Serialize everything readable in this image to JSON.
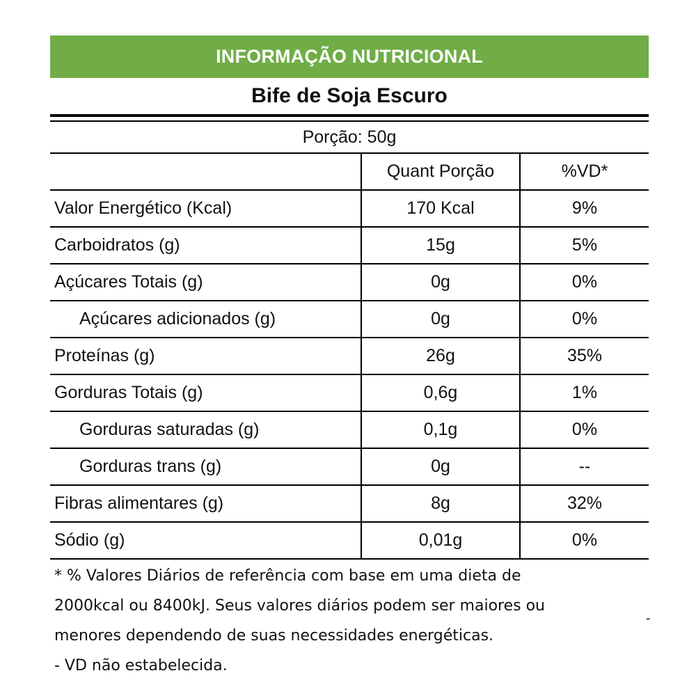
{
  "header": {
    "title": "INFORMAÇÃO NUTRICIONAL",
    "product": "Bife de Soja Escuro",
    "portion": "Porção: 50g"
  },
  "colors": {
    "banner": "#70ad47",
    "banner_text": "#ffffff"
  },
  "table": {
    "columns": [
      "",
      "Quant Porção",
      "%VD*"
    ],
    "rows": [
      {
        "name": "Valor Energético (Kcal)",
        "qty": "170 Kcal",
        "vd": "9%",
        "indent": false
      },
      {
        "name": "Carboidratos (g)",
        "qty": "15g",
        "vd": "5%",
        "indent": false
      },
      {
        "name": "Açúcares Totais (g)",
        "qty": "0g",
        "vd": "0%",
        "indent": false
      },
      {
        "name": "Açúcares adicionados (g)",
        "qty": "0g",
        "vd": "0%",
        "indent": true
      },
      {
        "name": "Proteínas (g)",
        "qty": "26g",
        "vd": "35%",
        "indent": false
      },
      {
        "name": "Gorduras Totais (g)",
        "qty": "0,6g",
        "vd": "1%",
        "indent": false
      },
      {
        "name": "Gorduras saturadas (g)",
        "qty": "0,1g",
        "vd": "0%",
        "indent": true
      },
      {
        "name": "Gorduras trans (g)",
        "qty": "0g",
        "vd": "--",
        "indent": true
      },
      {
        "name": "Fibras alimentares (g)",
        "qty": "8g",
        "vd": "32%",
        "indent": false
      },
      {
        "name": "Sódio (g)",
        "qty": "0,01g",
        "vd": "0%",
        "indent": false
      }
    ]
  },
  "footnote": {
    "lines": [
      "* % Valores Diários de referência com base em uma dieta de",
      "2000kcal ou 8400kJ. Seus valores diários podem ser maiores ou",
      "menores dependendo de suas necessidades energéticas.",
      "- VD não estabelecida."
    ],
    "stray_mark": "-"
  }
}
